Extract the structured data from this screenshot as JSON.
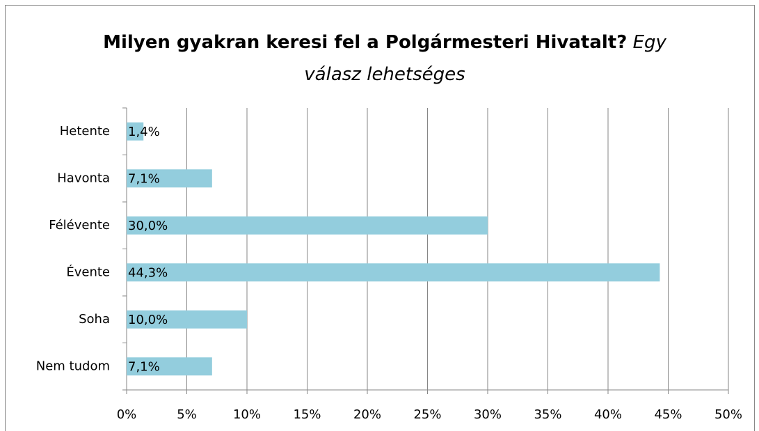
{
  "chart_data": {
    "type": "bar",
    "orientation": "horizontal",
    "title": "Milyen gyakran keresi fel a Polgármesteri Hivatalt?",
    "subtitle": "Egy válasz lehetséges",
    "categories": [
      "Hetente",
      "Havonta",
      "Félévente",
      "Évente",
      "Soha",
      "Nem tudom"
    ],
    "values": [
      1.4,
      7.1,
      30.0,
      44.3,
      10.0,
      7.1
    ],
    "value_labels": [
      "1,4%",
      "7,1%",
      "30,0%",
      "44,3%",
      "10,0%",
      "7,1%"
    ],
    "color": "#93cddd",
    "xlim": [
      0,
      50
    ],
    "xticks": [
      {
        "value": 0,
        "label": "0%"
      },
      {
        "value": 5,
        "label": "5%"
      },
      {
        "value": 10,
        "label": "10%"
      },
      {
        "value": 15,
        "label": "15%"
      },
      {
        "value": 20,
        "label": "20%"
      },
      {
        "value": 25,
        "label": "25%"
      },
      {
        "value": 30,
        "label": "30%"
      },
      {
        "value": 35,
        "label": "35%"
      },
      {
        "value": 40,
        "label": "40%"
      },
      {
        "value": 45,
        "label": "45%"
      },
      {
        "value": 50,
        "label": "50%"
      }
    ],
    "grid": true
  }
}
